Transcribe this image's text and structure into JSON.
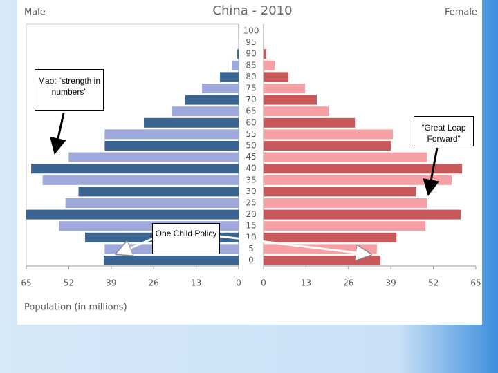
{
  "chart_data": {
    "type": "pyramid",
    "title": "China - 2010",
    "left_label": "Male",
    "right_label": "Female",
    "x_label": "Population (in millions)",
    "categories": [
      "0",
      "5",
      "10",
      "15",
      "20",
      "25",
      "30",
      "35",
      "40",
      "45",
      "50",
      "55",
      "60",
      "65",
      "70",
      "75",
      "80",
      "85",
      "90",
      "95",
      "100"
    ],
    "series": [
      {
        "name": "Male",
        "side": "left",
        "colors": [
          "#3a6590",
          "#9fa8da"
        ],
        "values": [
          41.3,
          41,
          47,
          55,
          65,
          53,
          49,
          60,
          63.5,
          52,
          41,
          41,
          29,
          20.5,
          16.3,
          11.2,
          5.7,
          2.1,
          0.4,
          0.1,
          0
        ]
      },
      {
        "name": "Female",
        "side": "right",
        "colors": [
          "#c8585a",
          "#f6a0a6"
        ],
        "values": [
          35.8,
          34.7,
          40.7,
          49.6,
          60.4,
          50,
          46.8,
          57.6,
          60.8,
          50,
          39,
          39.6,
          28,
          19.9,
          16.3,
          12.7,
          7.6,
          3.4,
          0.8,
          0.2,
          0
        ]
      }
    ],
    "xlim": [
      0,
      65
    ],
    "xticks": [
      65,
      52,
      39,
      26,
      13,
      0
    ],
    "annotations": [
      {
        "text": "Mao: “strength in numbers”"
      },
      {
        "text": "“Great Leap Forward”"
      },
      {
        "text": "One Child Policy"
      }
    ]
  }
}
